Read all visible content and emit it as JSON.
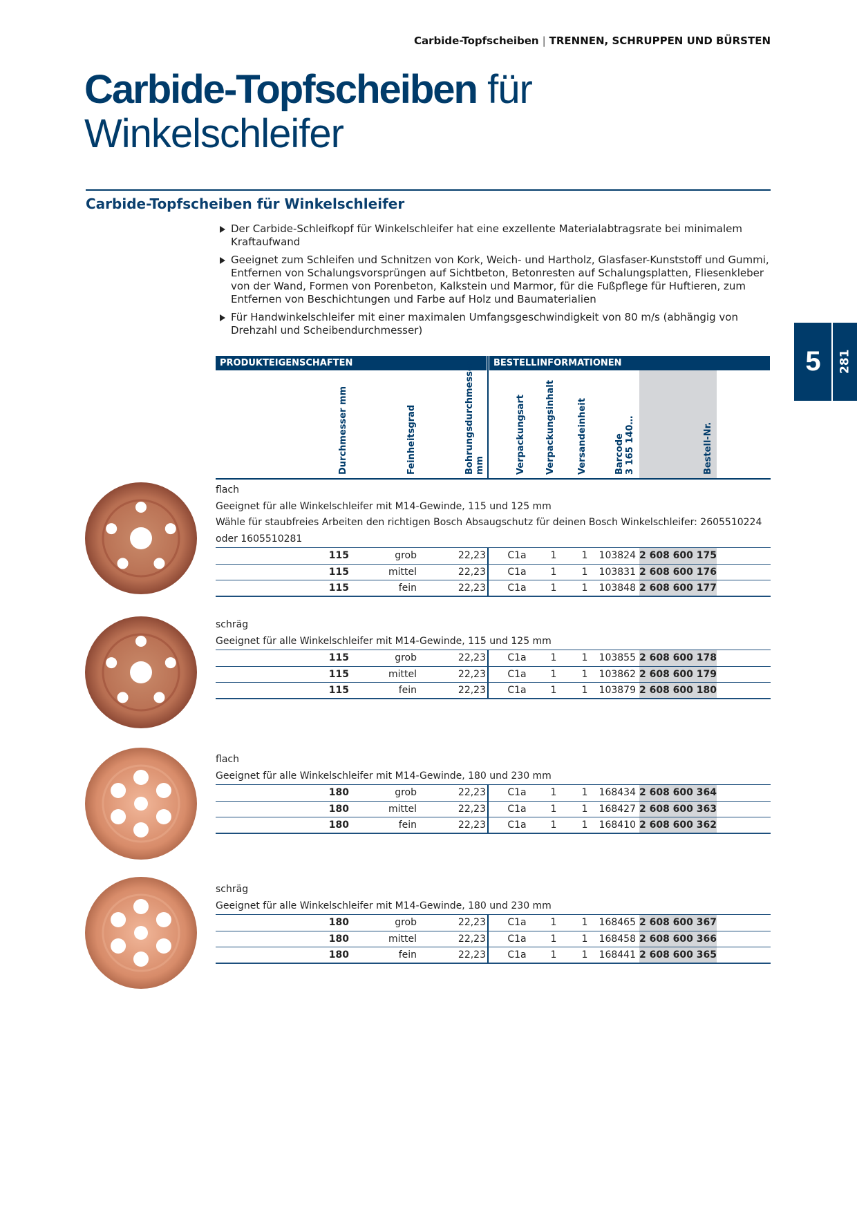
{
  "header": {
    "section": "Carbide-Topfscheiben",
    "chapter": "TRENNEN, SCHRUPPEN UND BÜRSTEN"
  },
  "title": {
    "bold": "Carbide-Topfscheiben",
    "regular": "für",
    "line2": "Winkelschleifer"
  },
  "section_title": "Carbide-Topfscheiben für Winkelschleifer",
  "bullets": [
    "Der Carbide-Schleifkopf für Winkelschleifer hat eine exzellente Materialabtragsrate bei minimalem Kraftaufwand",
    "Geeignet zum Schleifen und Schnitzen von Kork, Weich- und Hartholz, Glasfaser-Kunststoff und Gummi, Entfernen von Schalungsvorsprüngen auf Sichtbeton, Betonresten auf Schalungsplatten, Fliesenkleber von der Wand, Formen von Porenbeton, Kalkstein und Marmor, für die Fußpflege für Huftieren, zum Entfernen von Beschichtungen und Farbe auf Holz und Baumaterialien",
    "Für Handwinkelschleifer mit einer maximalen Umfangsgeschwindigkeit von 80 m/s (abhängig von Drehzahl und Scheibendurchmesser)"
  ],
  "tab": {
    "chapter": "5",
    "page": "281"
  },
  "table": {
    "group_headers": [
      "PRODUKTEIGENSCHAFTEN",
      "BESTELLINFORMATIONEN"
    ],
    "columns": [
      [
        "Durchmesser mm"
      ],
      [
        "Feinheitsgrad"
      ],
      [
        "Bohrungsdurchmesser",
        "mm"
      ],
      [
        "Verpackungsart"
      ],
      [
        "Verpackungsinhalt"
      ],
      [
        "Versandeinheit"
      ],
      [
        "Barcode",
        "3 165 140…"
      ],
      [
        "Bestell-Nr."
      ]
    ],
    "groups": [
      {
        "label": "flach",
        "notes": [
          "Geeignet für alle Winkelschleifer mit M14-Gewinde, 115 und 125 mm",
          "Wähle für staubfreies Arbeiten den richtigen Bosch Absaugschutz für deinen Bosch Winkelschleifer: 2605510224 oder 1605510281"
        ],
        "rows": [
          [
            "115",
            "grob",
            "22,23",
            "C1a",
            "1",
            "1",
            "103824",
            "2 608 600 175"
          ],
          [
            "115",
            "mittel",
            "22,23",
            "C1a",
            "1",
            "1",
            "103831",
            "2 608 600 176"
          ],
          [
            "115",
            "fein",
            "22,23",
            "C1a",
            "1",
            "1",
            "103848",
            "2 608 600 177"
          ]
        ]
      },
      {
        "label": "schräg",
        "notes": [
          "Geeignet für alle Winkelschleifer mit M14-Gewinde, 115 und 125 mm"
        ],
        "rows": [
          [
            "115",
            "grob",
            "22,23",
            "C1a",
            "1",
            "1",
            "103855",
            "2 608 600 178"
          ],
          [
            "115",
            "mittel",
            "22,23",
            "C1a",
            "1",
            "1",
            "103862",
            "2 608 600 179"
          ],
          [
            "115",
            "fein",
            "22,23",
            "C1a",
            "1",
            "1",
            "103879",
            "2 608 600 180"
          ]
        ]
      },
      {
        "label": "flach",
        "notes": [
          "Geeignet für alle Winkelschleifer mit M14-Gewinde, 180 und 230 mm"
        ],
        "rows": [
          [
            "180",
            "grob",
            "22,23",
            "C1a",
            "1",
            "1",
            "168434",
            "2 608 600 364"
          ],
          [
            "180",
            "mittel",
            "22,23",
            "C1a",
            "1",
            "1",
            "168427",
            "2 608 600 363"
          ],
          [
            "180",
            "fein",
            "22,23",
            "C1a",
            "1",
            "1",
            "168410",
            "2 608 600 362"
          ]
        ]
      },
      {
        "label": "schräg",
        "notes": [
          "Geeignet für alle Winkelschleifer mit M14-Gewinde, 180 und 230 mm"
        ],
        "rows": [
          [
            "180",
            "grob",
            "22,23",
            "C1a",
            "1",
            "1",
            "168465",
            "2 608 600 367"
          ],
          [
            "180",
            "mittel",
            "22,23",
            "C1a",
            "1",
            "1",
            "168458",
            "2 608 600 366"
          ],
          [
            "180",
            "fein",
            "22,23",
            "C1a",
            "1",
            "1",
            "168441",
            "2 608 600 365"
          ]
        ]
      }
    ]
  }
}
